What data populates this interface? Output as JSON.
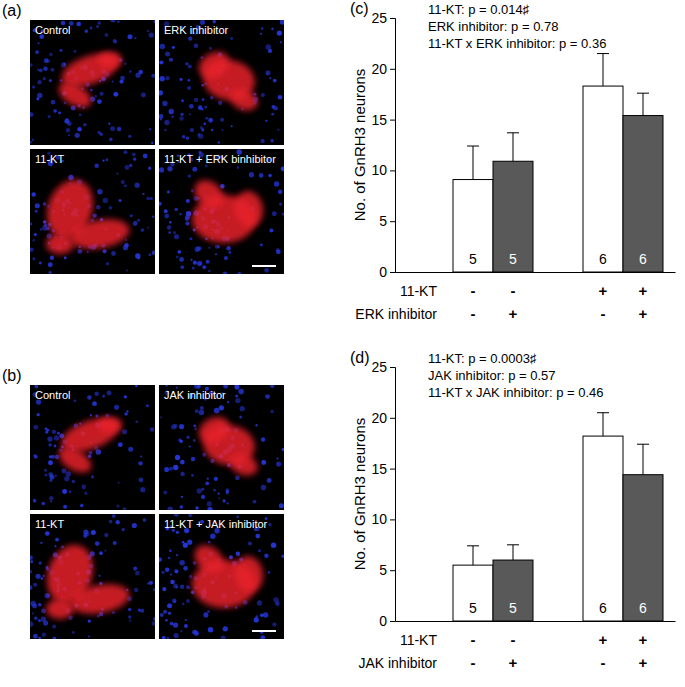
{
  "panels": [
    {
      "label": "(a)",
      "images": [
        "Control",
        "ERK inhibitor",
        "11-KT",
        "11-KT + ERK binhibitor"
      ]
    },
    {
      "label": "(b)",
      "images": [
        "Control",
        "JAK inhibitor",
        "11-KT",
        "11-KT + JAK inhibitor"
      ]
    }
  ],
  "chart_data": [
    {
      "type": "bar",
      "panel_label": "(c)",
      "annotations": [
        "11-KT: p = 0.014♯",
        "ERK inhibitor: p = 0.78",
        "11-KT x ERK inhibitor: p = 0.36"
      ],
      "y_label": "No. of GnRH3 neurons",
      "categories": [
        null,
        null,
        null,
        null
      ],
      "values": [
        9.1,
        10.9,
        18.3,
        15.4
      ],
      "errors": [
        3.3,
        2.8,
        3.2,
        2.2
      ],
      "n": [
        5,
        5,
        6,
        6
      ],
      "colors": [
        "#ffffff",
        "#595959",
        "#ffffff",
        "#595959"
      ],
      "treatments": [
        {
          "name": "11-KT",
          "signs": [
            "-",
            "-",
            "+",
            "+"
          ]
        },
        {
          "name": "ERK inhibitor",
          "signs": [
            "-",
            "+",
            "-",
            "+"
          ]
        }
      ],
      "ylim": [
        0,
        25
      ],
      "yticks": [
        0,
        5,
        10,
        15,
        20,
        25
      ],
      "tick_labels": "y"
    },
    {
      "type": "bar",
      "panel_label": "(d)",
      "annotations": [
        "11-KT: p = 0.0003♯",
        "JAK inhibitor: p = 0.57",
        "11-KT x JAK inhibitor: p = 0.46"
      ],
      "y_label": "No. of GnRH3 neurons",
      "categories": [
        null,
        null,
        null,
        null
      ],
      "values": [
        5.5,
        6.0,
        18.2,
        14.4
      ],
      "errors": [
        1.9,
        1.5,
        2.3,
        3.0
      ],
      "n": [
        5,
        5,
        6,
        6
      ],
      "colors": [
        "#ffffff",
        "#595959",
        "#ffffff",
        "#595959"
      ],
      "treatments": [
        {
          "name": "11-KT",
          "signs": [
            "-",
            "-",
            "+",
            "+"
          ]
        },
        {
          "name": "JAK inhibitor",
          "signs": [
            "-",
            "+",
            "-",
            "+"
          ]
        }
      ],
      "ylim": [
        0,
        25
      ],
      "yticks": [
        0,
        5,
        10,
        15,
        20,
        25
      ],
      "tick_labels": "y"
    }
  ]
}
